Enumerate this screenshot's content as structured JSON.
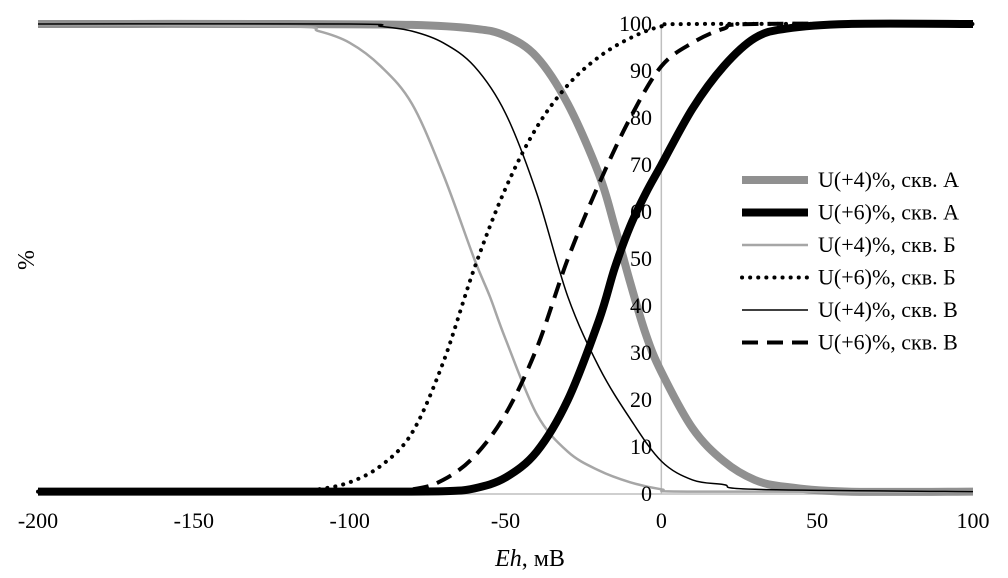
{
  "chart_data": {
    "type": "line",
    "title": "",
    "xlabel_italic": "Eh",
    "xlabel_rest": ", мВ",
    "ylabel": "%",
    "xlim": [
      -200,
      100
    ],
    "ylim": [
      0,
      100
    ],
    "x_ticks": [
      "-200",
      "-150",
      "-100",
      "-50",
      "0",
      "50",
      "100"
    ],
    "y_ticks": [
      "0",
      "10",
      "20",
      "30",
      "40",
      "50",
      "60",
      "70",
      "80",
      "90",
      "100"
    ],
    "legend_position": "right",
    "series": [
      {
        "name": "U(+4)%, скв. А",
        "color": "#909090",
        "style": "solid-thick",
        "x": [
          -200,
          -120,
          -80,
          -60,
          -50,
          -40,
          -30,
          -20,
          -15,
          -10,
          -5,
          0,
          10,
          20,
          30,
          40,
          60,
          100
        ],
        "y": [
          100,
          100,
          99.8,
          99,
          97.5,
          93,
          83,
          68,
          57,
          45,
          34,
          26,
          14,
          7,
          3,
          1.5,
          0.5,
          0.5
        ]
      },
      {
        "name": "U(+6)%, скв. А",
        "color": "#000000",
        "style": "solid-thick",
        "x": [
          -200,
          -100,
          -70,
          -60,
          -50,
          -40,
          -30,
          -20,
          -15,
          -10,
          -5,
          0,
          10,
          20,
          30,
          40,
          60,
          100
        ],
        "y": [
          0.5,
          0.5,
          0.6,
          1.2,
          3.5,
          9,
          20,
          37,
          48,
          57,
          64,
          70,
          82,
          91,
          97,
          99,
          100,
          100
        ]
      },
      {
        "name": "U(+4)%, скв. Б",
        "color": "#a6a6a6",
        "style": "solid-thin",
        "x": [
          -200,
          -120,
          -110,
          -100,
          -90,
          -80,
          -70,
          -60,
          -55,
          -50,
          -40,
          -30,
          -20,
          -10,
          0,
          10,
          100
        ],
        "y": [
          100,
          99.5,
          98.5,
          96,
          91,
          83,
          68,
          50,
          42,
          33,
          17,
          9,
          5,
          2.5,
          1,
          0.5,
          0.5
        ]
      },
      {
        "name": "U(+6)%, скв. Б",
        "color": "#000000",
        "style": "dotted",
        "x": [
          -200,
          -120,
          -110,
          -100,
          -90,
          -80,
          -70,
          -60,
          -50,
          -40,
          -30,
          -20,
          -10,
          0,
          10,
          100
        ],
        "y": [
          0.5,
          0.5,
          1,
          2.5,
          6,
          13,
          28,
          48,
          65,
          78,
          87,
          93,
          97,
          99.5,
          100,
          100
        ]
      },
      {
        "name": "U(+4)%, скв. В",
        "color": "#000000",
        "style": "solid-hair",
        "x": [
          -200,
          -100,
          -90,
          -80,
          -70,
          -60,
          -50,
          -40,
          -30,
          -20,
          -10,
          0,
          10,
          20,
          30,
          100
        ],
        "y": [
          100,
          100,
          99.5,
          98.5,
          96,
          91,
          81,
          64,
          42,
          27,
          16,
          7,
          3,
          2,
          1,
          0.5
        ]
      },
      {
        "name": "U(+6)%, скв. В",
        "color": "#000000",
        "style": "dashed",
        "x": [
          -200,
          -100,
          -80,
          -70,
          -60,
          -50,
          -40,
          -30,
          -20,
          -10,
          0,
          10,
          20,
          30,
          100
        ],
        "y": [
          0.5,
          0.5,
          1,
          3,
          8,
          17,
          31,
          50,
          66,
          80,
          91,
          96,
          99,
          100,
          100
        ]
      }
    ]
  }
}
